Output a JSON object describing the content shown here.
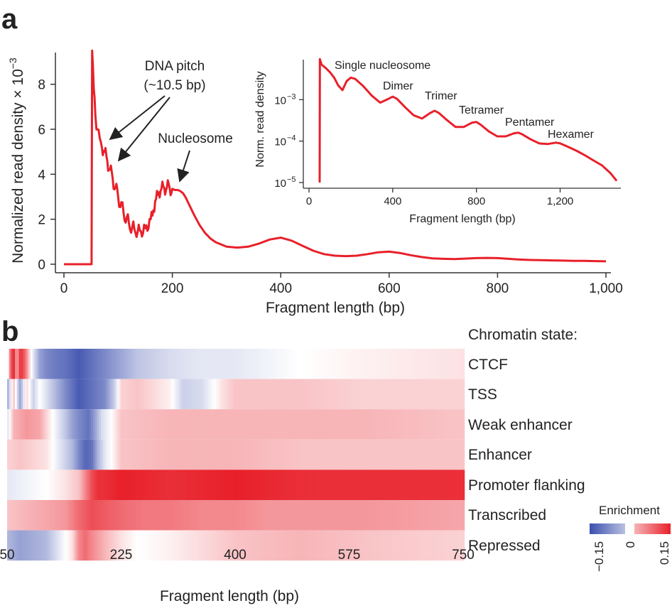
{
  "figure": {
    "panel_a_letter": "a",
    "panel_b_letter": "b"
  },
  "colors": {
    "line": "#e8202a",
    "negative": "#3b4fad",
    "positive": "#e8202a",
    "axis": "#333333"
  },
  "chart_data": [
    {
      "id": "panel-a-main",
      "type": "line",
      "xlabel": "Fragment length (bp)",
      "ylabel": "Normalized read density × 10",
      "ylabel_exponent": "−3",
      "xlim": [
        0,
        1000
      ],
      "ylim": [
        0,
        9.6
      ],
      "x_ticks": [
        0,
        200,
        400,
        600,
        800,
        1000
      ],
      "x_tick_labels": [
        "0",
        "200",
        "400",
        "600",
        "800",
        "1,000"
      ],
      "y_ticks": [
        0,
        2,
        4,
        6,
        8
      ],
      "y_tick_labels": [
        "0",
        "2",
        "4",
        "6",
        "8"
      ],
      "series": [
        {
          "x": [
            0,
            51,
            52,
            55,
            58,
            62,
            66,
            70,
            75,
            80,
            85,
            90,
            95,
            100,
            110,
            120,
            130,
            140,
            150,
            160,
            165,
            170,
            175,
            180,
            185,
            190,
            195,
            200,
            205,
            210,
            215,
            220,
            225,
            230,
            240,
            250,
            260,
            270,
            280,
            290,
            300,
            320,
            340,
            360,
            380,
            400,
            420,
            440,
            460,
            480,
            500,
            520,
            540,
            560,
            580,
            600,
            620,
            640,
            660,
            680,
            700,
            720,
            740,
            760,
            780,
            800,
            820,
            840,
            860,
            880,
            900,
            920,
            940,
            960,
            980,
            1000
          ],
          "y": [
            0,
            0,
            9.5,
            7.8,
            6.6,
            6.0,
            5.6,
            5.2,
            5.0,
            4.6,
            4.2,
            3.8,
            3.4,
            3.0,
            2.3,
            1.8,
            1.55,
            1.5,
            1.6,
            2.0,
            2.4,
            2.9,
            3.2,
            3.35,
            3.4,
            3.42,
            3.4,
            3.35,
            3.3,
            3.3,
            3.25,
            3.15,
            2.95,
            2.7,
            2.2,
            1.75,
            1.4,
            1.15,
            0.98,
            0.88,
            0.78,
            0.74,
            0.78,
            0.92,
            1.1,
            1.18,
            1.05,
            0.82,
            0.6,
            0.45,
            0.38,
            0.36,
            0.38,
            0.45,
            0.53,
            0.56,
            0.5,
            0.4,
            0.32,
            0.26,
            0.24,
            0.23,
            0.25,
            0.27,
            0.28,
            0.27,
            0.24,
            0.21,
            0.19,
            0.18,
            0.17,
            0.16,
            0.15,
            0.15,
            0.14,
            0.13
          ]
        }
      ],
      "annotations": [
        {
          "text_line1": "DNA pitch",
          "text_line2": "(~10.5 bp)",
          "points_to_x": [
            75,
            85
          ],
          "points_to_y": [
            5.2,
            4.25
          ]
        },
        {
          "text_line1": "Nucleosome",
          "points_to_x": [
            210
          ],
          "points_to_y": [
            3.5
          ]
        }
      ]
    },
    {
      "id": "panel-a-inset",
      "type": "line",
      "scale_y": "log",
      "xlabel": "Fragment length (bp)",
      "ylabel": "Norm. read density",
      "xlim": [
        0,
        1480
      ],
      "ylim": [
        1e-05,
        0.01
      ],
      "x_ticks": [
        0,
        400,
        800,
        1200
      ],
      "x_tick_labels": [
        "0",
        "400",
        "800",
        "1,200"
      ],
      "y_ticks": [
        1e-05,
        0.0001,
        0.001
      ],
      "y_tick_bases": [
        "10",
        "10",
        "10"
      ],
      "y_tick_exponents": [
        "−5",
        "−4",
        "−3"
      ],
      "series": [
        {
          "x": [
            51,
            52,
            60,
            80,
            100,
            120,
            140,
            160,
            180,
            200,
            220,
            260,
            300,
            340,
            380,
            400,
            420,
            460,
            500,
            540,
            580,
            600,
            620,
            660,
            700,
            740,
            780,
            800,
            820,
            860,
            900,
            940,
            980,
            1000,
            1020,
            1060,
            1100,
            1140,
            1180,
            1200,
            1240,
            1280,
            1320,
            1360,
            1400,
            1440,
            1470
          ],
          "y": [
            1e-05,
            0.0095,
            0.007,
            0.0058,
            0.0046,
            0.0034,
            0.0022,
            0.0017,
            0.0028,
            0.0034,
            0.0032,
            0.0021,
            0.00125,
            0.00085,
            0.00105,
            0.00118,
            0.00105,
            0.00065,
            0.00042,
            0.00035,
            0.00048,
            0.00054,
            0.00048,
            0.00032,
            0.00022,
            0.00022,
            0.00028,
            0.00029,
            0.00025,
            0.00017,
            0.00013,
            0.00013,
            0.000155,
            0.00016,
            0.000145,
            0.00011,
            8.8e-05,
            8.5e-05,
            9.2e-05,
            8.8e-05,
            7.2e-05,
            5.8e-05,
            4.5e-05,
            3.4e-05,
            2.6e-05,
            1.7e-05,
            1.1e-05
          ]
        }
      ],
      "annotations": [
        {
          "text": "Single nucleosome",
          "x": 200,
          "y": 0.0035
        },
        {
          "text": "Dimer",
          "x": 400,
          "y": 0.00118
        },
        {
          "text": "Trimer",
          "x": 600,
          "y": 0.00054
        },
        {
          "text": "Tetramer",
          "x": 800,
          "y": 0.00029
        },
        {
          "text": "Pentamer",
          "x": 1000,
          "y": 0.00016
        },
        {
          "text": "Hexamer",
          "x": 1200,
          "y": 8.8e-05
        }
      ]
    },
    {
      "id": "panel-b-heatmap",
      "type": "heatmap",
      "xlabel": "Fragment length (bp)",
      "x_ticks": [
        50,
        225,
        400,
        575,
        750
      ],
      "x_tick_labels": [
        "50",
        "225",
        "400",
        "575",
        "750"
      ],
      "row_header": "Chromatin state:",
      "rows": [
        "CTCF",
        "TSS",
        "Weak enhancer",
        "Enhancer",
        "Promoter flanking",
        "Transcribed",
        "Repressed"
      ],
      "color_range": [
        -0.15,
        0.15
      ],
      "legend_title": "Enrichment",
      "legend_tick_labels": [
        "−0.15",
        "0",
        "0.15"
      ],
      "profiles": [
        {
          "row": "CTCF",
          "x": [
            50,
            55,
            60,
            65,
            70,
            75,
            80,
            85,
            90,
            100,
            110,
            120,
            140,
            160,
            180,
            200,
            220,
            250,
            300,
            350,
            400,
            450,
            500,
            600,
            750
          ],
          "v": [
            -0.05,
            0.1,
            0.15,
            0.05,
            0.14,
            0.12,
            0.08,
            0.02,
            -0.02,
            -0.08,
            -0.1,
            -0.11,
            -0.12,
            -0.14,
            -0.12,
            -0.1,
            -0.08,
            -0.05,
            -0.03,
            -0.02,
            -0.02,
            -0.01,
            0.0,
            0.01,
            0.02
          ]
        },
        {
          "row": "TSS",
          "x": [
            50,
            60,
            70,
            80,
            90,
            100,
            120,
            140,
            160,
            180,
            200,
            215,
            225,
            250,
            300,
            320,
            350,
            380,
            400,
            450,
            500,
            600,
            700,
            750
          ],
          "v": [
            -0.08,
            0.04,
            -0.08,
            0.03,
            -0.04,
            0.0,
            -0.05,
            -0.1,
            -0.14,
            -0.12,
            -0.1,
            -0.04,
            0.03,
            0.04,
            0.01,
            -0.04,
            -0.03,
            0.02,
            0.04,
            0.04,
            0.04,
            0.03,
            0.03,
            0.03
          ]
        },
        {
          "row": "Weak enhancer",
          "x": [
            50,
            60,
            80,
            100,
            120,
            140,
            150,
            160,
            175,
            185,
            195,
            210,
            225,
            300,
            400,
            500,
            600,
            750
          ],
          "v": [
            -0.03,
            0.05,
            0.07,
            0.06,
            0.0,
            -0.05,
            -0.08,
            -0.1,
            -0.12,
            -0.08,
            -0.03,
            0.0,
            0.04,
            0.05,
            0.05,
            0.05,
            0.05,
            0.04
          ]
        },
        {
          "row": "Enhancer",
          "x": [
            50,
            70,
            90,
            110,
            130,
            150,
            160,
            170,
            180,
            190,
            200,
            210,
            225,
            300,
            400,
            500,
            600,
            750
          ],
          "v": [
            0.03,
            0.04,
            0.03,
            0.02,
            -0.02,
            -0.06,
            -0.1,
            -0.13,
            -0.12,
            -0.06,
            -0.02,
            0.0,
            0.04,
            0.05,
            0.05,
            0.04,
            0.04,
            0.04
          ]
        },
        {
          "row": "Promoter flanking",
          "x": [
            50,
            80,
            110,
            140,
            160,
            170,
            180,
            190,
            200,
            225,
            300,
            400,
            500,
            600,
            750
          ],
          "v": [
            -0.02,
            -0.01,
            0.0,
            0.02,
            0.04,
            0.08,
            0.12,
            0.14,
            0.14,
            0.15,
            0.14,
            0.15,
            0.14,
            0.14,
            0.14
          ]
        },
        {
          "row": "Transcribed",
          "x": [
            50,
            80,
            110,
            140,
            160,
            180,
            200,
            225,
            260,
            300,
            350,
            400,
            450,
            500,
            600,
            750
          ],
          "v": [
            0.04,
            0.05,
            0.06,
            0.07,
            0.1,
            0.12,
            0.11,
            0.1,
            0.09,
            0.09,
            0.08,
            0.08,
            0.07,
            0.07,
            0.07,
            0.06
          ]
        },
        {
          "row": "Repressed",
          "x": [
            50,
            70,
            90,
            110,
            130,
            150,
            160,
            170,
            180,
            200,
            225,
            250,
            300,
            400,
            500,
            600,
            750
          ],
          "v": [
            -0.06,
            -0.08,
            -0.07,
            -0.06,
            -0.02,
            0.02,
            0.08,
            0.1,
            0.08,
            0.05,
            0.02,
            0.0,
            0.01,
            0.04,
            0.05,
            0.04,
            0.03
          ]
        }
      ]
    }
  ]
}
